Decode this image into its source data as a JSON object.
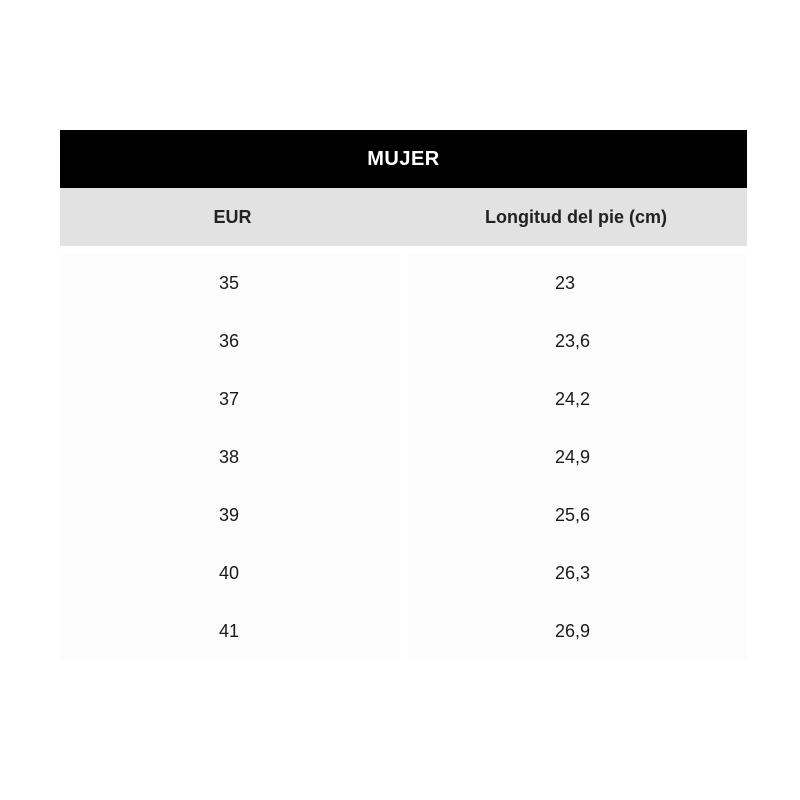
{
  "table": {
    "title": "MUJER",
    "headers": [
      "EUR",
      "Longitud del pie (cm)"
    ],
    "rows": [
      [
        "35",
        "23"
      ],
      [
        "36",
        "23,6"
      ],
      [
        "37",
        "24,2"
      ],
      [
        "38",
        "24,9"
      ],
      [
        "39",
        "25,6"
      ],
      [
        "40",
        "26,3"
      ],
      [
        "41",
        "26,9"
      ]
    ]
  }
}
